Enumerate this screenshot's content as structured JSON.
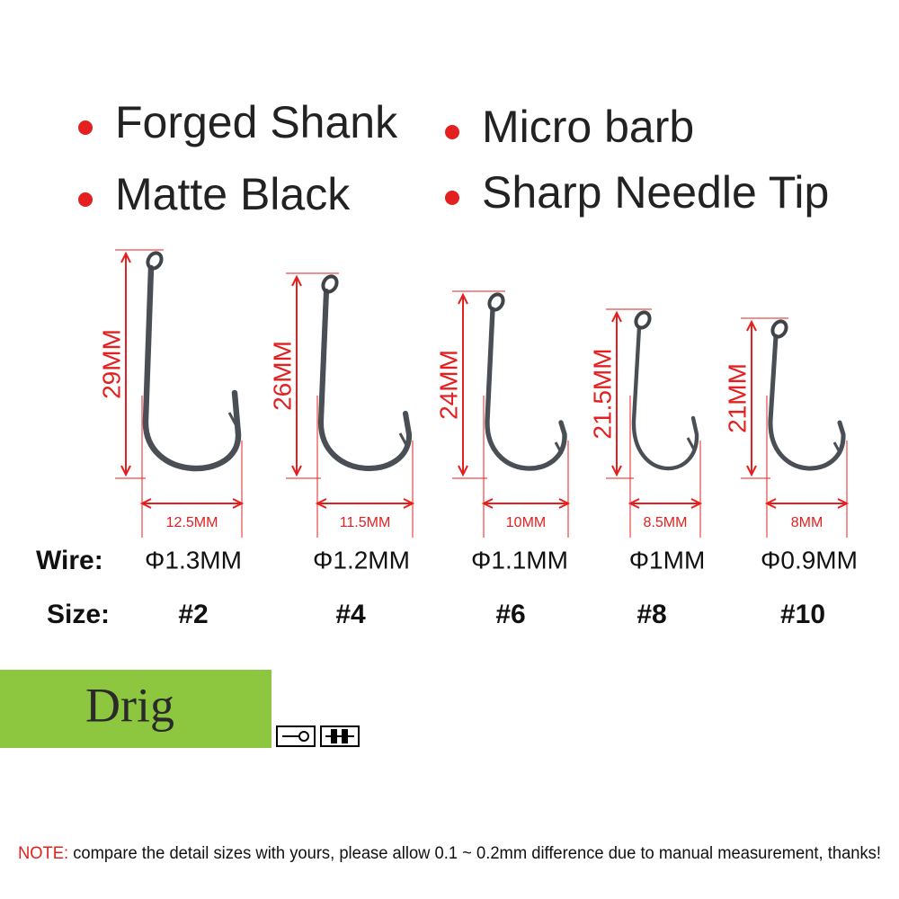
{
  "features": [
    "Forged Shank",
    "Micro barb",
    "Matte Black",
    "Sharp Needle Tip"
  ],
  "row_labels": {
    "wire": "Wire:",
    "size": "Size:"
  },
  "hooks": [
    {
      "height": "29MM",
      "width": "12.5MM",
      "wire": "Φ1.3MM",
      "size": "#2"
    },
    {
      "height": "26MM",
      "width": "11.5MM",
      "wire": "Φ1.2MM",
      "size": "#4"
    },
    {
      "height": "24MM",
      "width": "10MM",
      "wire": "Φ1.1MM",
      "size": "#6"
    },
    {
      "height": "21.5MM",
      "width": "8.5MM",
      "wire": "Φ1MM",
      "size": "#8"
    },
    {
      "height": "21MM",
      "width": "8MM",
      "wire": "Φ0.9MM",
      "size": "#10"
    }
  ],
  "brand": "Drig",
  "note": {
    "prefix": "NOTE:",
    "text": " compare the detail sizes with yours, please allow 0.1 ~ 0.2mm difference due to manual measurement, thanks!"
  }
}
